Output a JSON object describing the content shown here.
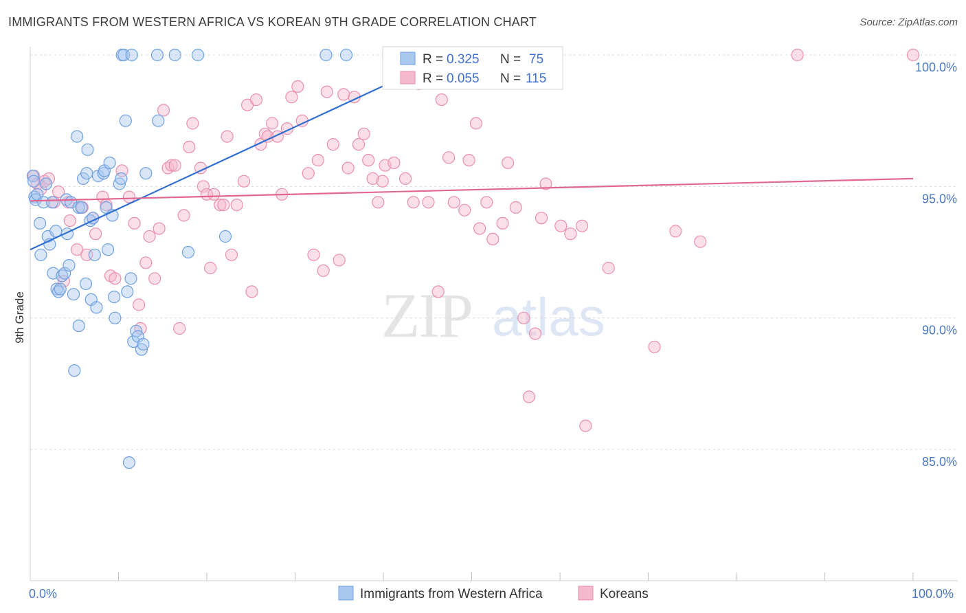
{
  "header": {
    "title": "IMMIGRANTS FROM WESTERN AFRICA VS KOREAN 9TH GRADE CORRELATION CHART",
    "source": "Source: ZipAtlas.com"
  },
  "watermark": {
    "zip": "ZIP",
    "atlas": "atlas"
  },
  "colors": {
    "blue_fill": "#a9c8f0",
    "blue_stroke": "#6e9fe0",
    "blue_line": "#2f6fd0",
    "pink_fill": "#f5b8cc",
    "pink_stroke": "#e98fae",
    "pink_line": "#e0678f",
    "grid": "#d8d8d8",
    "tick_label": "#4a78c2"
  },
  "legend": {
    "r_label": "R =",
    "n_label": "N =",
    "entries": [
      {
        "r": "0.325",
        "n": "75"
      },
      {
        "r": "0.055",
        "n": "115"
      }
    ]
  },
  "chart_data": {
    "type": "scatter",
    "xlabel": "",
    "ylabel": "9th Grade",
    "xlim": [
      0,
      100
    ],
    "ylim": [
      80.5,
      100.5
    ],
    "x_tick_labels": [
      "0.0%",
      "100.0%"
    ],
    "y_ticks": [
      85,
      90,
      95,
      100
    ],
    "y_tick_labels": [
      "85.0%",
      "90.0%",
      "95.0%",
      "100.0%"
    ],
    "series": [
      {
        "name": "Immigrants from Western Africa",
        "color": "blue",
        "trend": {
          "x": [
            0,
            40.5
          ],
          "y": [
            92.6,
            98.9
          ]
        },
        "points": [
          [
            0.3,
            95.4
          ],
          [
            0.4,
            95.2
          ],
          [
            0.5,
            94.6
          ],
          [
            0.6,
            94.5
          ],
          [
            0.8,
            94.7
          ],
          [
            1.1,
            93.6
          ],
          [
            1.2,
            92.4
          ],
          [
            1.5,
            94.4
          ],
          [
            1.8,
            95.1
          ],
          [
            2,
            93.1
          ],
          [
            2.2,
            92.8
          ],
          [
            2.5,
            94.4
          ],
          [
            2.6,
            91.7
          ],
          [
            2.9,
            93.3
          ],
          [
            3,
            91.1
          ],
          [
            3.2,
            91
          ],
          [
            3.4,
            91.1
          ],
          [
            3.6,
            91.6
          ],
          [
            3.9,
            91.7
          ],
          [
            4.1,
            94.5
          ],
          [
            4.2,
            93.2
          ],
          [
            4.4,
            92
          ],
          [
            4.6,
            94.4
          ],
          [
            4.9,
            90.9
          ],
          [
            5,
            88
          ],
          [
            5.3,
            96.9
          ],
          [
            5.5,
            94.2
          ],
          [
            5.5,
            89.7
          ],
          [
            5.8,
            94.2
          ],
          [
            6,
            95.3
          ],
          [
            6.3,
            91.3
          ],
          [
            6.4,
            95.5
          ],
          [
            6.5,
            96.4
          ],
          [
            6.8,
            93.7
          ],
          [
            6.9,
            90.7
          ],
          [
            7.1,
            93.8
          ],
          [
            7.3,
            92.4
          ],
          [
            7.5,
            90.4
          ],
          [
            7.7,
            95.4
          ],
          [
            8.3,
            95.5
          ],
          [
            8.4,
            95.6
          ],
          [
            8.6,
            94.2
          ],
          [
            8.8,
            92.6
          ],
          [
            9,
            95.9
          ],
          [
            9.3,
            93.9
          ],
          [
            9.5,
            90.8
          ],
          [
            9.6,
            90
          ],
          [
            10.1,
            95.1
          ],
          [
            10.3,
            95.3
          ],
          [
            10.4,
            100
          ],
          [
            10.6,
            100
          ],
          [
            10.8,
            97.5
          ],
          [
            11,
            91
          ],
          [
            11.2,
            84.5
          ],
          [
            11.4,
            91.5
          ],
          [
            11.5,
            100
          ],
          [
            11.7,
            89.1
          ],
          [
            12,
            89.5
          ],
          [
            12.2,
            89.3
          ],
          [
            12.6,
            88.8
          ],
          [
            12.8,
            89
          ],
          [
            13.1,
            95.5
          ],
          [
            14.4,
            100
          ],
          [
            14.5,
            97.5
          ],
          [
            16.4,
            100
          ],
          [
            17.9,
            92.5
          ],
          [
            19,
            100
          ],
          [
            22.1,
            93.1
          ],
          [
            33.5,
            100
          ],
          [
            35.8,
            100
          ]
        ]
      },
      {
        "name": "Koreans",
        "color": "pink",
        "trend": {
          "x": [
            0,
            100
          ],
          "y": [
            94.45,
            95.3
          ]
        },
        "points": [
          [
            0.4,
            95.4
          ],
          [
            0.8,
            95.1
          ],
          [
            1.2,
            94.9
          ],
          [
            1.6,
            95.2
          ],
          [
            2.1,
            95.3
          ],
          [
            2.7,
            94.4
          ],
          [
            3.2,
            94.8
          ],
          [
            3.8,
            91.4
          ],
          [
            4.3,
            94.4
          ],
          [
            4.5,
            93.7
          ],
          [
            5.3,
            92.6
          ],
          [
            5.9,
            94.2
          ],
          [
            6.4,
            92.4
          ],
          [
            7.1,
            93.8
          ],
          [
            7.4,
            93.2
          ],
          [
            8.2,
            94.6
          ],
          [
            8.6,
            94.3
          ],
          [
            9.1,
            91.6
          ],
          [
            9.6,
            91.5
          ],
          [
            10.4,
            95.6
          ],
          [
            11.2,
            94.6
          ],
          [
            11.8,
            93.6
          ],
          [
            12.3,
            90.5
          ],
          [
            12.5,
            89.6
          ],
          [
            13.1,
            92.1
          ],
          [
            13.5,
            93.1
          ],
          [
            14.1,
            91.5
          ],
          [
            14.6,
            93.4
          ],
          [
            15.1,
            97.9
          ],
          [
            15.6,
            95.7
          ],
          [
            16,
            95.8
          ],
          [
            16.4,
            95.8
          ],
          [
            16.9,
            89.6
          ],
          [
            17.4,
            93.9
          ],
          [
            18,
            96.5
          ],
          [
            18.4,
            97.4
          ],
          [
            19.3,
            95.7
          ],
          [
            19.6,
            95
          ],
          [
            20,
            94.7
          ],
          [
            20.4,
            91.9
          ],
          [
            20.8,
            94.7
          ],
          [
            21.5,
            94.3
          ],
          [
            21.9,
            94.3
          ],
          [
            22.3,
            96.9
          ],
          [
            22.8,
            92.4
          ],
          [
            23.4,
            94.3
          ],
          [
            24.2,
            95.2
          ],
          [
            24.6,
            98.1
          ],
          [
            25.1,
            91
          ],
          [
            25.6,
            98.3
          ],
          [
            26.1,
            96.6
          ],
          [
            26.6,
            97
          ],
          [
            26.9,
            96.9
          ],
          [
            27.4,
            97.4
          ],
          [
            28,
            96.9
          ],
          [
            28.5,
            94.7
          ],
          [
            29.1,
            97.2
          ],
          [
            29.6,
            98.4
          ],
          [
            30.3,
            98.8
          ],
          [
            30.8,
            97.5
          ],
          [
            31.5,
            95.5
          ],
          [
            32.1,
            92.4
          ],
          [
            32.6,
            96
          ],
          [
            33.2,
            91.8
          ],
          [
            33.6,
            98.6
          ],
          [
            34.3,
            96.6
          ],
          [
            35,
            92.2
          ],
          [
            35.5,
            98.5
          ],
          [
            36,
            95.7
          ],
          [
            36.7,
            98.4
          ],
          [
            37.2,
            96.6
          ],
          [
            37.8,
            97
          ],
          [
            38.3,
            96
          ],
          [
            38.8,
            95.3
          ],
          [
            39.4,
            94.4
          ],
          [
            39.9,
            95.2
          ],
          [
            40.2,
            95.8
          ],
          [
            40.7,
            99.9
          ],
          [
            41.2,
            95.9
          ],
          [
            42.1,
            99.1
          ],
          [
            42.5,
            95.3
          ],
          [
            43.4,
            94.4
          ],
          [
            44,
            98.9
          ],
          [
            45.1,
            94.4
          ],
          [
            46.2,
            91
          ],
          [
            46.6,
            98.3
          ],
          [
            47.4,
            96.1
          ],
          [
            48,
            94.4
          ],
          [
            49.2,
            94.1
          ],
          [
            49.7,
            96
          ],
          [
            50.5,
            97.4
          ],
          [
            50.9,
            93.4
          ],
          [
            51.7,
            94.4
          ],
          [
            52.4,
            93
          ],
          [
            53.5,
            93.6
          ],
          [
            54.1,
            95.9
          ],
          [
            55,
            94.2
          ],
          [
            55.9,
            90
          ],
          [
            56.5,
            87
          ],
          [
            57.2,
            89.4
          ],
          [
            57.9,
            93.8
          ],
          [
            58.4,
            95.1
          ],
          [
            60.1,
            93.5
          ],
          [
            61.2,
            93.2
          ],
          [
            62.5,
            93.5
          ],
          [
            62.9,
            85.9
          ],
          [
            65.5,
            91.9
          ],
          [
            70.7,
            88.9
          ],
          [
            73.1,
            93.3
          ],
          [
            75.9,
            92.9
          ],
          [
            86.9,
            100
          ],
          [
            100,
            100
          ]
        ]
      }
    ]
  },
  "bottom_legend": {
    "items": [
      "Immigrants from Western Africa",
      "Koreans"
    ]
  }
}
